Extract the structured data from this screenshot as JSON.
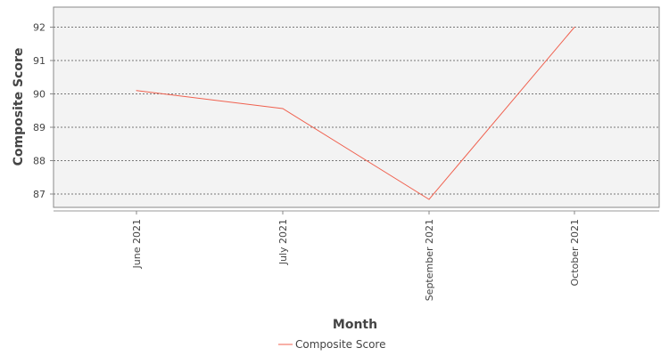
{
  "chart_data": {
    "type": "line",
    "categories": [
      "June 2021",
      "July 2021",
      "September 2021",
      "October 2021"
    ],
    "series": [
      {
        "name": "Composite Score",
        "values": [
          90.1,
          89.56,
          86.84,
          92.0
        ],
        "color": "#f0614f"
      }
    ],
    "xlabel": "Month",
    "ylabel": "Composite Score",
    "yticks": [
      87,
      88,
      89,
      90,
      91,
      92
    ],
    "ylim": [
      86.6,
      92.6
    ],
    "grid": true,
    "legend_position": "bottom",
    "plot_background": "#f3f3f3",
    "grid_color": "#777777"
  }
}
